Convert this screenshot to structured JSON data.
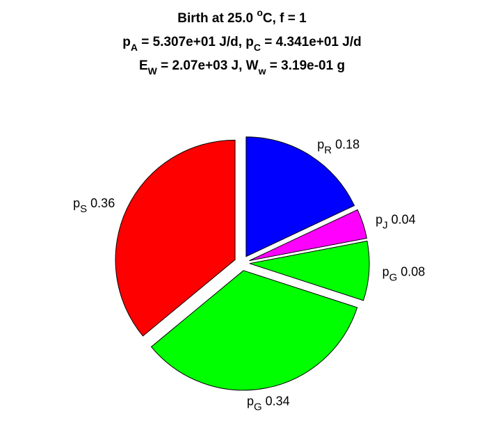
{
  "chart_data": {
    "type": "pie",
    "title": [
      [
        {
          "text": "Birth at 25.0 "
        },
        {
          "text": "o",
          "script": "sup"
        },
        {
          "text": "C, f = 1"
        }
      ],
      [
        {
          "text": "p"
        },
        {
          "text": "A",
          "script": "sub"
        },
        {
          "text": " = 5.307e+01 J/d, p"
        },
        {
          "text": "C",
          "script": "sub"
        },
        {
          "text": " = 4.341e+01 J/d"
        }
      ],
      [
        {
          "text": "E"
        },
        {
          "text": "W",
          "script": "sub"
        },
        {
          "text": " = 2.07e+03 J, W"
        },
        {
          "text": "w",
          "script": "sub"
        },
        {
          "text": " = 3.19e-01 g"
        }
      ]
    ],
    "categories": [
      {
        "symbol": "p",
        "subscript": "R"
      },
      {
        "symbol": "p",
        "subscript": "J"
      },
      {
        "symbol": "p",
        "subscript": "G"
      },
      {
        "symbol": "p",
        "subscript": "G"
      },
      {
        "symbol": "p",
        "subscript": "S"
      }
    ],
    "values": [
      0.18,
      0.04,
      0.08,
      0.34,
      0.36
    ],
    "colors": [
      "#0000ff",
      "#ff00ff",
      "#00ff00",
      "#00ff00",
      "#ff0000"
    ],
    "explode": true
  }
}
